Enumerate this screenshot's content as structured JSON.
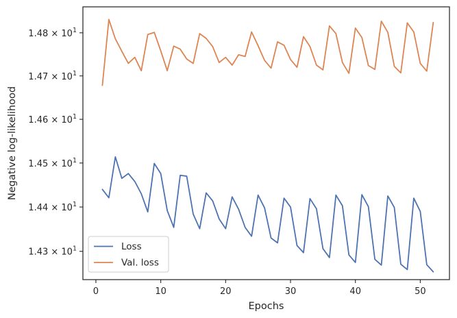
{
  "chart_data": {
    "type": "line",
    "xlabel": "Epochs",
    "ylabel": "Negative log-likelihood",
    "xlim": [
      -2,
      54.5
    ],
    "ylim": [
      14.2365,
      14.8605
    ],
    "yscale": "log",
    "grid": false,
    "legend_position": "lower-left",
    "x_ticks": [
      0,
      10,
      20,
      30,
      40,
      50
    ],
    "y_ticks": [
      {
        "value": 14.3,
        "mantissa": "1.43",
        "exponent": "1"
      },
      {
        "value": 14.4,
        "mantissa": "1.44",
        "exponent": "1"
      },
      {
        "value": 14.5,
        "mantissa": "1.45",
        "exponent": "1"
      },
      {
        "value": 14.6,
        "mantissa": "1.46",
        "exponent": "1"
      },
      {
        "value": 14.7,
        "mantissa": "1.47",
        "exponent": "1"
      },
      {
        "value": 14.8,
        "mantissa": "1.48",
        "exponent": "1"
      }
    ],
    "x": [
      1,
      2,
      3,
      4,
      5,
      6,
      7,
      8,
      9,
      10,
      11,
      12,
      13,
      14,
      15,
      16,
      17,
      18,
      19,
      20,
      21,
      22,
      23,
      24,
      25,
      26,
      27,
      28,
      29,
      30,
      31,
      32,
      33,
      34,
      35,
      36,
      37,
      38,
      39,
      40,
      41,
      42,
      43,
      44,
      45,
      46,
      47,
      48,
      49,
      50,
      51,
      52
    ],
    "series": [
      {
        "name": "Loss",
        "color": "#4c72b0",
        "values": [
          14.44,
          14.421,
          14.514,
          14.465,
          14.476,
          14.458,
          14.43,
          14.389,
          14.499,
          14.476,
          14.392,
          14.354,
          14.472,
          14.47,
          14.384,
          14.351,
          14.432,
          14.414,
          14.373,
          14.351,
          14.423,
          14.395,
          14.354,
          14.334,
          14.427,
          14.398,
          14.33,
          14.319,
          14.42,
          14.4,
          14.313,
          14.297,
          14.419,
          14.396,
          14.306,
          14.286,
          14.427,
          14.403,
          14.292,
          14.275,
          14.428,
          14.401,
          14.282,
          14.269,
          14.425,
          14.399,
          14.271,
          14.259,
          14.42,
          14.39,
          14.27,
          14.254
        ]
      },
      {
        "name": "Val. loss",
        "color": "#dd8452",
        "values": [
          14.678,
          14.831,
          14.786,
          14.757,
          14.729,
          14.743,
          14.712,
          14.796,
          14.801,
          14.758,
          14.712,
          14.769,
          14.762,
          14.739,
          14.729,
          14.798,
          14.787,
          14.768,
          14.731,
          14.743,
          14.725,
          14.749,
          14.745,
          14.802,
          14.77,
          14.736,
          14.718,
          14.779,
          14.771,
          14.738,
          14.72,
          14.791,
          14.768,
          14.725,
          14.714,
          14.816,
          14.798,
          14.731,
          14.706,
          14.811,
          14.789,
          14.724,
          14.715,
          14.827,
          14.801,
          14.722,
          14.707,
          14.823,
          14.802,
          14.729,
          14.711,
          14.824
        ]
      }
    ]
  }
}
